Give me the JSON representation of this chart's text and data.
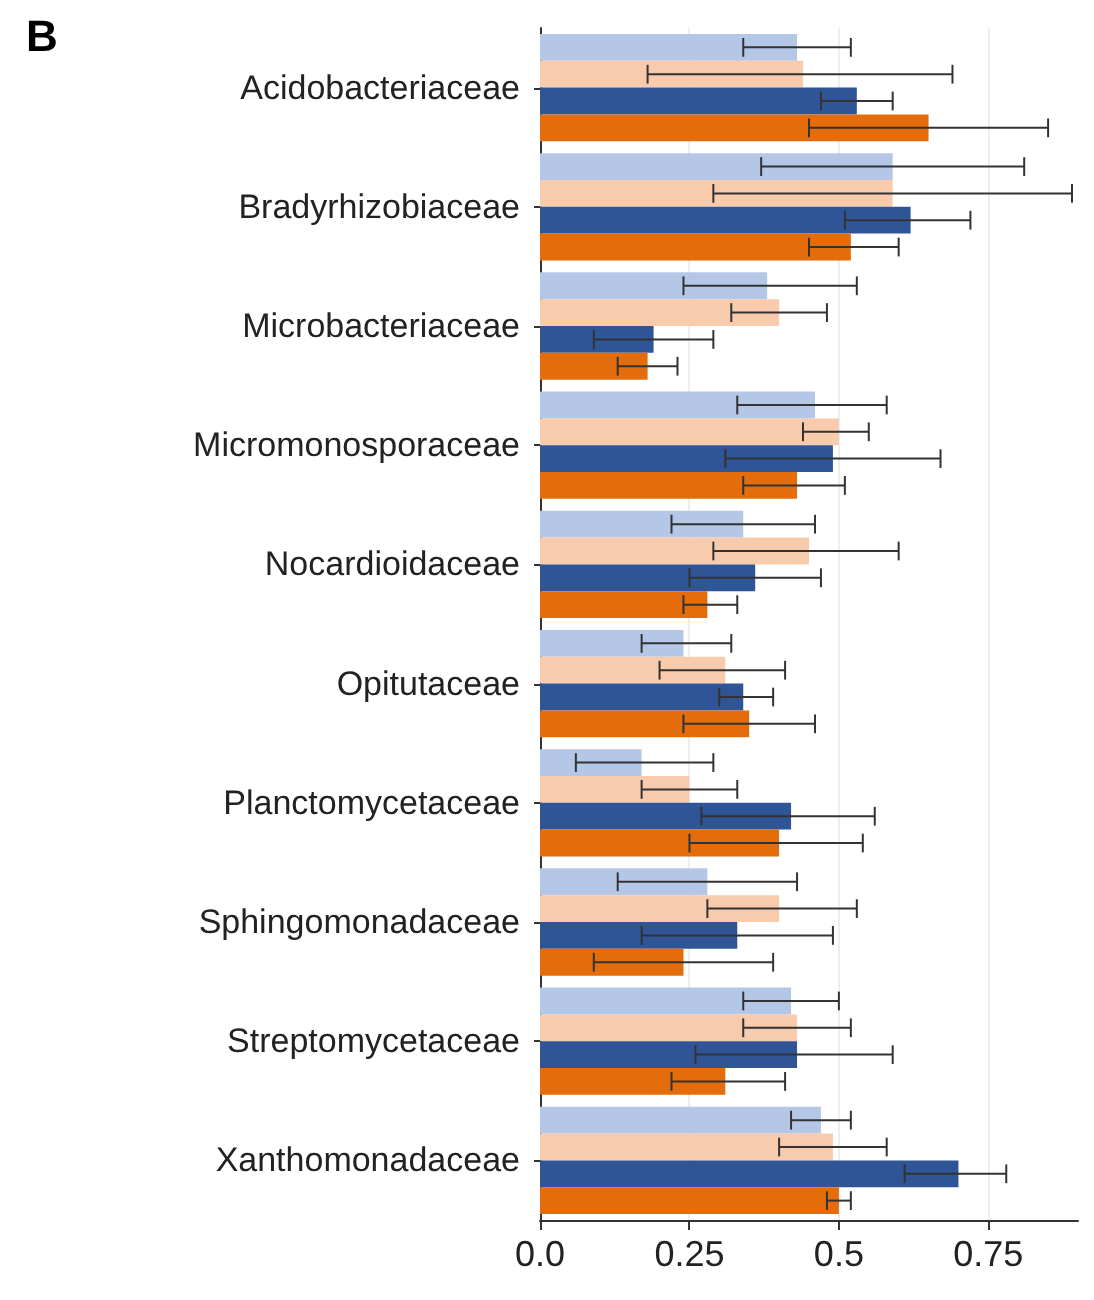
{
  "chart_data": {
    "type": "bar",
    "title": "B",
    "orientation": "horizontal",
    "categories": [
      "Acidobacteriaceae",
      "Bradyrhizobiaceae",
      "Microbacteriaceae",
      "Micromonosporaceae",
      "Nocardioidaceae",
      "Opitutaceae",
      "Planctomycetaceae",
      "Sphingomonadaceae",
      "Streptomycetaceae",
      "Xanthomonadaceae"
    ],
    "series": [
      {
        "color": "#b4c7e7",
        "values": [
          0.43,
          0.59,
          0.38,
          0.46,
          0.34,
          0.24,
          0.17,
          0.28,
          0.42,
          0.47
        ],
        "errors": [
          [
            0.34,
            0.52
          ],
          [
            0.37,
            0.81
          ],
          [
            0.24,
            0.53
          ],
          [
            0.33,
            0.58
          ],
          [
            0.22,
            0.46
          ],
          [
            0.17,
            0.32
          ],
          [
            0.06,
            0.29
          ],
          [
            0.13,
            0.43
          ],
          [
            0.34,
            0.5
          ],
          [
            0.42,
            0.52
          ]
        ]
      },
      {
        "color": "#f8cbad",
        "values": [
          0.44,
          0.59,
          0.4,
          0.5,
          0.45,
          0.31,
          0.25,
          0.4,
          0.43,
          0.49
        ],
        "errors": [
          [
            0.18,
            0.69
          ],
          [
            0.29,
            0.89
          ],
          [
            0.32,
            0.48
          ],
          [
            0.44,
            0.55
          ],
          [
            0.29,
            0.6
          ],
          [
            0.2,
            0.41
          ],
          [
            0.17,
            0.33
          ],
          [
            0.28,
            0.53
          ],
          [
            0.34,
            0.52
          ],
          [
            0.4,
            0.58
          ]
        ]
      },
      {
        "color": "#2f5597",
        "values": [
          0.53,
          0.62,
          0.19,
          0.49,
          0.36,
          0.34,
          0.42,
          0.33,
          0.43,
          0.7
        ],
        "errors": [
          [
            0.47,
            0.59
          ],
          [
            0.51,
            0.72
          ],
          [
            0.09,
            0.29
          ],
          [
            0.31,
            0.67
          ],
          [
            0.25,
            0.47
          ],
          [
            0.3,
            0.39
          ],
          [
            0.27,
            0.56
          ],
          [
            0.17,
            0.49
          ],
          [
            0.26,
            0.59
          ],
          [
            0.61,
            0.78
          ]
        ]
      },
      {
        "color": "#e46c0a",
        "values": [
          0.65,
          0.52,
          0.18,
          0.43,
          0.28,
          0.35,
          0.4,
          0.24,
          0.31,
          0.5
        ],
        "errors": [
          [
            0.45,
            0.85
          ],
          [
            0.45,
            0.6
          ],
          [
            0.13,
            0.23
          ],
          [
            0.34,
            0.51
          ],
          [
            0.24,
            0.33
          ],
          [
            0.24,
            0.46
          ],
          [
            0.25,
            0.54
          ],
          [
            0.09,
            0.39
          ],
          [
            0.22,
            0.41
          ],
          [
            0.48,
            0.52
          ]
        ]
      }
    ],
    "xlim": [
      0,
      0.9
    ],
    "xticks": [
      {
        "value": 0,
        "label": "0.0"
      },
      0.25,
      0.5,
      0.75
    ],
    "grid": "x"
  }
}
